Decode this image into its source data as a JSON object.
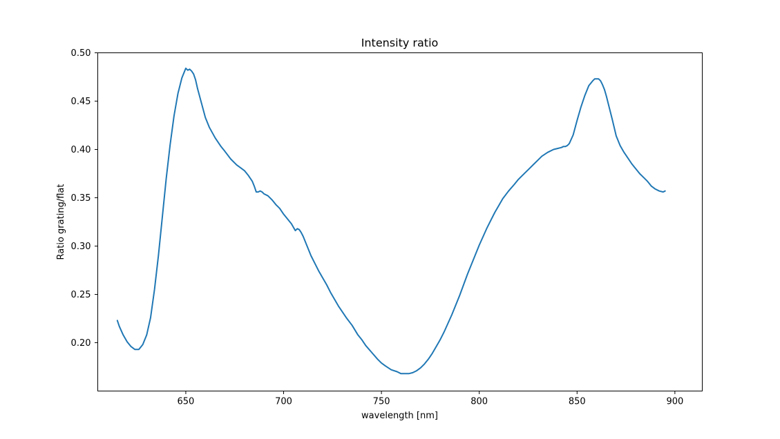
{
  "chart_data": {
    "type": "line",
    "title": "Intensity ratio",
    "xlabel": "wavelength [nm]",
    "ylabel": "Ratio grating/flat",
    "xlim": [
      605,
      914
    ],
    "ylim": [
      0.15,
      0.5
    ],
    "xticks": [
      650,
      700,
      750,
      800,
      850,
      900
    ],
    "xtick_labels": [
      "650",
      "700",
      "750",
      "800",
      "850",
      "900"
    ],
    "yticks": [
      0.2,
      0.25,
      0.3,
      0.35,
      0.4,
      0.45,
      0.5
    ],
    "ytick_labels": [
      "0.20",
      "0.25",
      "0.30",
      "0.35",
      "0.40",
      "0.45",
      "0.50"
    ],
    "grid": false,
    "series": [
      {
        "color": "#1f77b4",
        "x": [
          615,
          616,
          618,
          620,
          622,
          624,
          626,
          628,
          630,
          632,
          634,
          636,
          638,
          640,
          642,
          644,
          646,
          648,
          650,
          651,
          652,
          653,
          654,
          655,
          656,
          658,
          660,
          662,
          665,
          668,
          670,
          673,
          676,
          678,
          680,
          682,
          684,
          685,
          686,
          687,
          688,
          689,
          690,
          692,
          694,
          696,
          698,
          700,
          702,
          704,
          706,
          707,
          708,
          709,
          710,
          712,
          714,
          716,
          718,
          720,
          722,
          724,
          726,
          728,
          730,
          732,
          735,
          738,
          740,
          742,
          745,
          748,
          750,
          752,
          755,
          758,
          760,
          762,
          764,
          766,
          768,
          770,
          772,
          774,
          776,
          778,
          780,
          782,
          784,
          786,
          788,
          790,
          792,
          794,
          796,
          798,
          800,
          802,
          804,
          806,
          808,
          810,
          812,
          815,
          818,
          820,
          822,
          825,
          828,
          830,
          832,
          835,
          838,
          840,
          842,
          843,
          844,
          845,
          846,
          848,
          850,
          852,
          854,
          856,
          858,
          859,
          860,
          861,
          862,
          863,
          864,
          865,
          866,
          868,
          870,
          872,
          874,
          876,
          878,
          880,
          882,
          884,
          886,
          888,
          890,
          892,
          894,
          895
        ],
        "y": [
          0.223,
          0.217,
          0.208,
          0.201,
          0.196,
          0.193,
          0.193,
          0.198,
          0.208,
          0.226,
          0.255,
          0.29,
          0.33,
          0.37,
          0.405,
          0.435,
          0.458,
          0.474,
          0.484,
          0.482,
          0.483,
          0.481,
          0.478,
          0.472,
          0.463,
          0.448,
          0.433,
          0.423,
          0.412,
          0.403,
          0.398,
          0.39,
          0.384,
          0.381,
          0.378,
          0.373,
          0.367,
          0.362,
          0.356,
          0.356,
          0.357,
          0.356,
          0.354,
          0.352,
          0.348,
          0.343,
          0.339,
          0.333,
          0.328,
          0.323,
          0.316,
          0.318,
          0.317,
          0.314,
          0.31,
          0.3,
          0.29,
          0.282,
          0.274,
          0.267,
          0.26,
          0.252,
          0.245,
          0.238,
          0.232,
          0.226,
          0.218,
          0.208,
          0.203,
          0.197,
          0.19,
          0.183,
          0.179,
          0.176,
          0.172,
          0.17,
          0.168,
          0.168,
          0.168,
          0.169,
          0.171,
          0.174,
          0.178,
          0.183,
          0.189,
          0.196,
          0.203,
          0.211,
          0.22,
          0.229,
          0.239,
          0.249,
          0.26,
          0.271,
          0.281,
          0.291,
          0.301,
          0.31,
          0.319,
          0.327,
          0.335,
          0.342,
          0.349,
          0.357,
          0.364,
          0.369,
          0.373,
          0.379,
          0.385,
          0.389,
          0.393,
          0.397,
          0.4,
          0.401,
          0.402,
          0.403,
          0.403,
          0.404,
          0.406,
          0.415,
          0.43,
          0.444,
          0.456,
          0.466,
          0.471,
          0.473,
          0.473,
          0.473,
          0.471,
          0.467,
          0.462,
          0.455,
          0.447,
          0.431,
          0.414,
          0.404,
          0.397,
          0.391,
          0.385,
          0.38,
          0.375,
          0.371,
          0.367,
          0.362,
          0.359,
          0.357,
          0.356,
          0.357
        ]
      }
    ]
  }
}
